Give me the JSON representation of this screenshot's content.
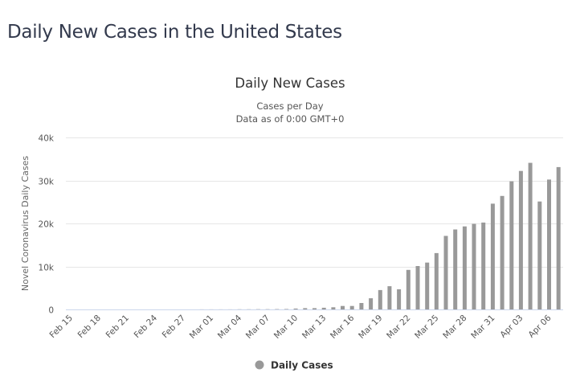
{
  "page": {
    "title": "Daily New Cases in the United States"
  },
  "colors": {
    "bar": "#999999",
    "grid": "#e6e6e6",
    "axis": "#ccd6eb"
  },
  "chart_data": {
    "type": "bar",
    "title": "Daily New Cases",
    "subtitle_lines": [
      "Cases per Day",
      "Data as of 0:00 GMT+0"
    ],
    "xlabel": "",
    "ylabel": "Novel Coronavirus Daily Cases",
    "ylim": [
      0,
      40000
    ],
    "y_ticks": [
      0,
      10000,
      20000,
      30000,
      40000
    ],
    "y_tick_labels": [
      "0",
      "10k",
      "20k",
      "30k",
      "40k"
    ],
    "grid": true,
    "legend": {
      "position": "bottom",
      "entries": [
        "Daily Cases"
      ]
    },
    "x_tick_labels": [
      "Feb 15",
      "Feb 18",
      "Feb 21",
      "Feb 24",
      "Feb 27",
      "Mar 01",
      "Mar 04",
      "Mar 07",
      "Mar 10",
      "Mar 13",
      "Mar 16",
      "Mar 19",
      "Mar 22",
      "Mar 25",
      "Mar 28",
      "Mar 31",
      "Apr 03",
      "Apr 06"
    ],
    "categories": [
      "Feb 15",
      "Feb 16",
      "Feb 17",
      "Feb 18",
      "Feb 19",
      "Feb 20",
      "Feb 21",
      "Feb 22",
      "Feb 23",
      "Feb 24",
      "Feb 25",
      "Feb 26",
      "Feb 27",
      "Feb 28",
      "Feb 29",
      "Mar 01",
      "Mar 02",
      "Mar 03",
      "Mar 04",
      "Mar 05",
      "Mar 06",
      "Mar 07",
      "Mar 08",
      "Mar 09",
      "Mar 10",
      "Mar 11",
      "Mar 12",
      "Mar 13",
      "Mar 14",
      "Mar 15",
      "Mar 16",
      "Mar 17",
      "Mar 18",
      "Mar 19",
      "Mar 20",
      "Mar 21",
      "Mar 22",
      "Mar 23",
      "Mar 24",
      "Mar 25",
      "Mar 26",
      "Mar 27",
      "Mar 28",
      "Mar 29",
      "Mar 30",
      "Mar 31",
      "Apr 01",
      "Apr 02",
      "Apr 03",
      "Apr 04",
      "Apr 05",
      "Apr 06",
      "Apr 07"
    ],
    "series": [
      {
        "name": "Daily Cases",
        "values": [
          0,
          0,
          0,
          0,
          0,
          0,
          0,
          0,
          0,
          0,
          0,
          0,
          0,
          0,
          10,
          10,
          20,
          20,
          30,
          30,
          60,
          60,
          70,
          100,
          200,
          300,
          300,
          400,
          500,
          800,
          800,
          1500,
          2600,
          4500,
          5400,
          4700,
          9200,
          10100,
          10900,
          13100,
          17100,
          18600,
          19300,
          19900,
          20200,
          24600,
          26400,
          29800,
          32200,
          34100,
          25100,
          30200,
          33100
        ]
      }
    ]
  }
}
